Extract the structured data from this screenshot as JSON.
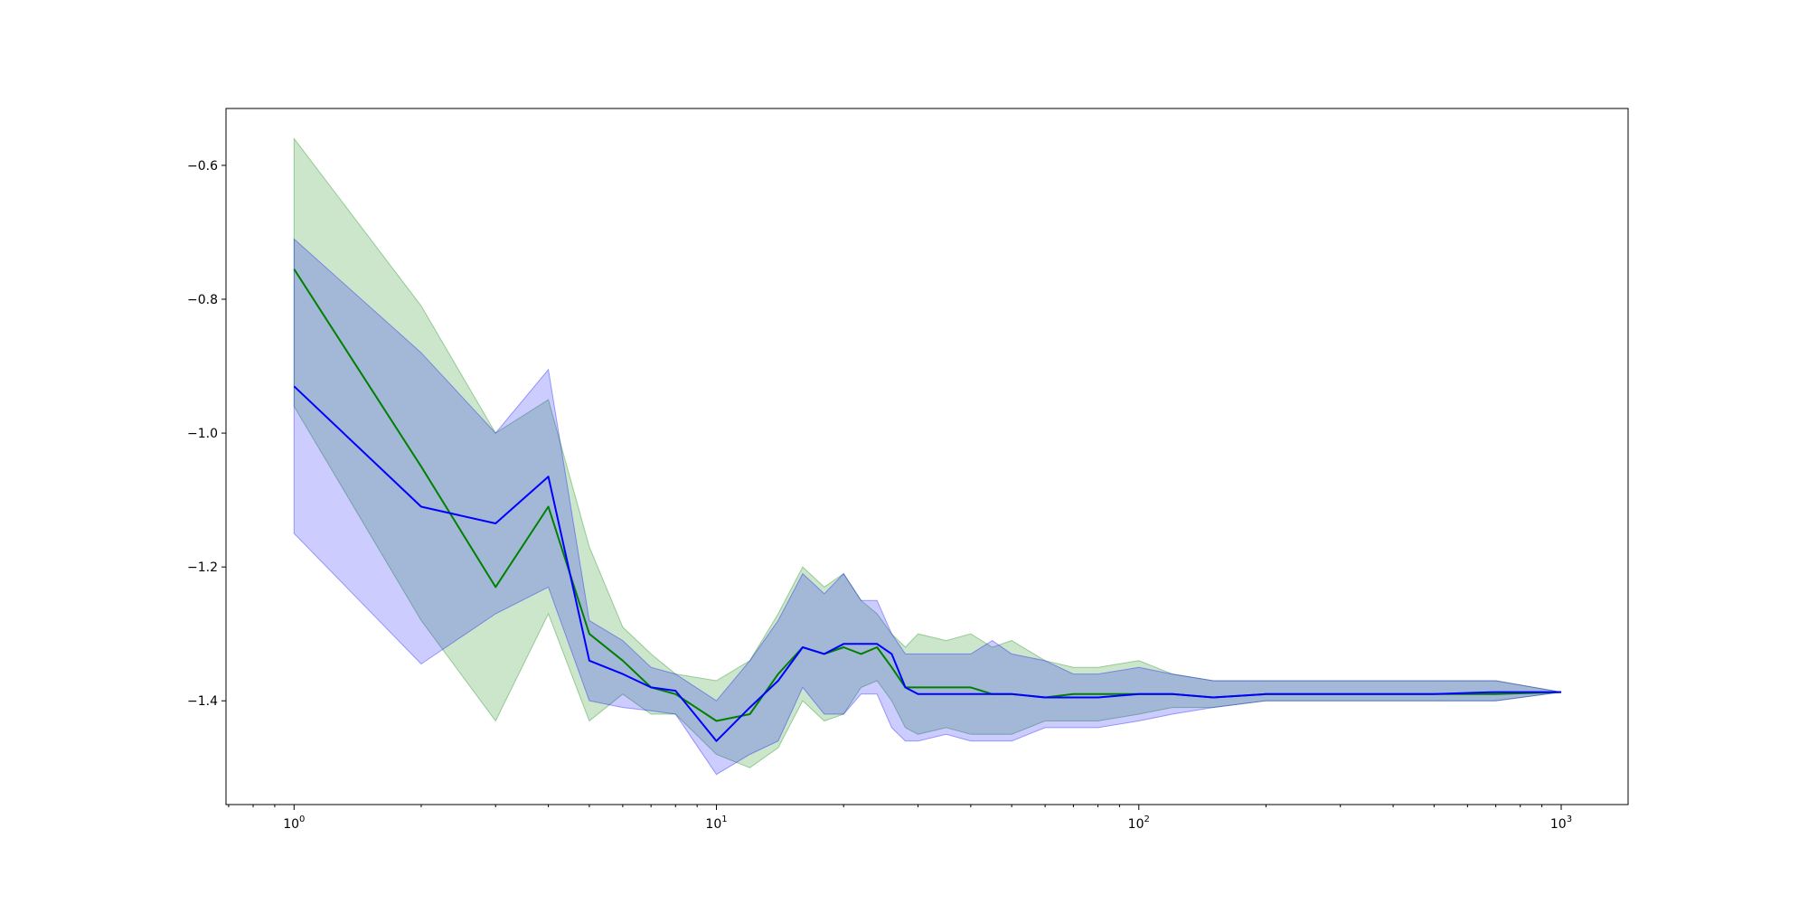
{
  "chart_data": {
    "type": "line",
    "title": "",
    "xlabel": "",
    "ylabel": "",
    "xscale": "log",
    "xlim": [
      0.69,
      1440
    ],
    "ylim": [
      -1.555,
      -0.515
    ],
    "grid": false,
    "legend": "none",
    "yticks": [
      {
        "value": -0.6,
        "label": "−0.6"
      },
      {
        "value": -0.8,
        "label": "−0.8"
      },
      {
        "value": -1.0,
        "label": "−1.0"
      },
      {
        "value": -1.2,
        "label": "−1.2"
      },
      {
        "value": -1.4,
        "label": "−1.4"
      }
    ],
    "xticks": [
      {
        "value": 1,
        "base": "10",
        "exp": "0"
      },
      {
        "value": 10,
        "base": "10",
        "exp": "1"
      },
      {
        "value": 100,
        "base": "10",
        "exp": "2"
      },
      {
        "value": 1000,
        "base": "10",
        "exp": "3"
      }
    ],
    "series": [
      {
        "color": "#008000",
        "band_color": "#008000",
        "band_opacity": 0.2,
        "x": [
          1,
          2,
          3,
          4,
          5,
          6,
          7,
          8,
          10,
          12,
          14,
          16,
          18,
          20,
          22,
          24,
          26,
          28,
          30,
          35,
          40,
          45,
          50,
          60,
          70,
          80,
          100,
          120,
          150,
          200,
          300,
          400,
          500,
          700,
          1000
        ],
        "mean": [
          -0.755,
          -1.05,
          -1.23,
          -1.11,
          -1.3,
          -1.34,
          -1.38,
          -1.39,
          -1.43,
          -1.42,
          -1.36,
          -1.32,
          -1.33,
          -1.32,
          -1.33,
          -1.32,
          -1.35,
          -1.38,
          -1.38,
          -1.38,
          -1.38,
          -1.39,
          -1.39,
          -1.395,
          -1.39,
          -1.39,
          -1.39,
          -1.39,
          -1.395,
          -1.39,
          -1.39,
          -1.39,
          -1.39,
          -1.39,
          -1.387
        ],
        "upper": [
          -0.56,
          -0.81,
          -1.0,
          -0.95,
          -1.17,
          -1.29,
          -1.33,
          -1.36,
          -1.37,
          -1.34,
          -1.27,
          -1.2,
          -1.23,
          -1.21,
          -1.25,
          -1.27,
          -1.3,
          -1.32,
          -1.3,
          -1.31,
          -1.3,
          -1.32,
          -1.31,
          -1.34,
          -1.35,
          -1.35,
          -1.34,
          -1.36,
          -1.37,
          -1.37,
          -1.37,
          -1.37,
          -1.37,
          -1.37,
          -1.387
        ],
        "lower": [
          -0.96,
          -1.28,
          -1.43,
          -1.27,
          -1.43,
          -1.39,
          -1.42,
          -1.42,
          -1.48,
          -1.5,
          -1.47,
          -1.4,
          -1.43,
          -1.42,
          -1.38,
          -1.37,
          -1.4,
          -1.44,
          -1.45,
          -1.44,
          -1.45,
          -1.45,
          -1.45,
          -1.43,
          -1.43,
          -1.43,
          -1.42,
          -1.41,
          -1.41,
          -1.4,
          -1.4,
          -1.4,
          -1.4,
          -1.4,
          -1.387
        ]
      },
      {
        "color": "#0000ff",
        "band_color": "#0000ff",
        "band_opacity": 0.2,
        "x": [
          1,
          2,
          3,
          4,
          5,
          6,
          7,
          8,
          10,
          12,
          14,
          16,
          18,
          20,
          22,
          24,
          26,
          28,
          30,
          35,
          40,
          45,
          50,
          60,
          70,
          80,
          100,
          120,
          150,
          200,
          300,
          400,
          500,
          700,
          1000
        ],
        "mean": [
          -0.93,
          -1.11,
          -1.135,
          -1.065,
          -1.34,
          -1.36,
          -1.38,
          -1.385,
          -1.46,
          -1.41,
          -1.37,
          -1.32,
          -1.33,
          -1.315,
          -1.315,
          -1.315,
          -1.33,
          -1.38,
          -1.39,
          -1.39,
          -1.39,
          -1.39,
          -1.39,
          -1.395,
          -1.395,
          -1.395,
          -1.39,
          -1.39,
          -1.395,
          -1.39,
          -1.39,
          -1.39,
          -1.39,
          -1.387,
          -1.387
        ],
        "upper": [
          -0.71,
          -0.88,
          -1.0,
          -0.905,
          -1.28,
          -1.31,
          -1.35,
          -1.36,
          -1.4,
          -1.34,
          -1.28,
          -1.21,
          -1.24,
          -1.21,
          -1.25,
          -1.25,
          -1.3,
          -1.33,
          -1.33,
          -1.33,
          -1.33,
          -1.31,
          -1.33,
          -1.34,
          -1.36,
          -1.36,
          -1.35,
          -1.36,
          -1.37,
          -1.37,
          -1.37,
          -1.37,
          -1.37,
          -1.37,
          -1.387
        ],
        "lower": [
          -1.15,
          -1.345,
          -1.27,
          -1.23,
          -1.4,
          -1.41,
          -1.415,
          -1.42,
          -1.51,
          -1.48,
          -1.46,
          -1.38,
          -1.42,
          -1.42,
          -1.39,
          -1.39,
          -1.44,
          -1.46,
          -1.46,
          -1.45,
          -1.46,
          -1.46,
          -1.46,
          -1.44,
          -1.44,
          -1.44,
          -1.43,
          -1.42,
          -1.41,
          -1.4,
          -1.4,
          -1.4,
          -1.4,
          -1.4,
          -1.387
        ]
      }
    ]
  }
}
